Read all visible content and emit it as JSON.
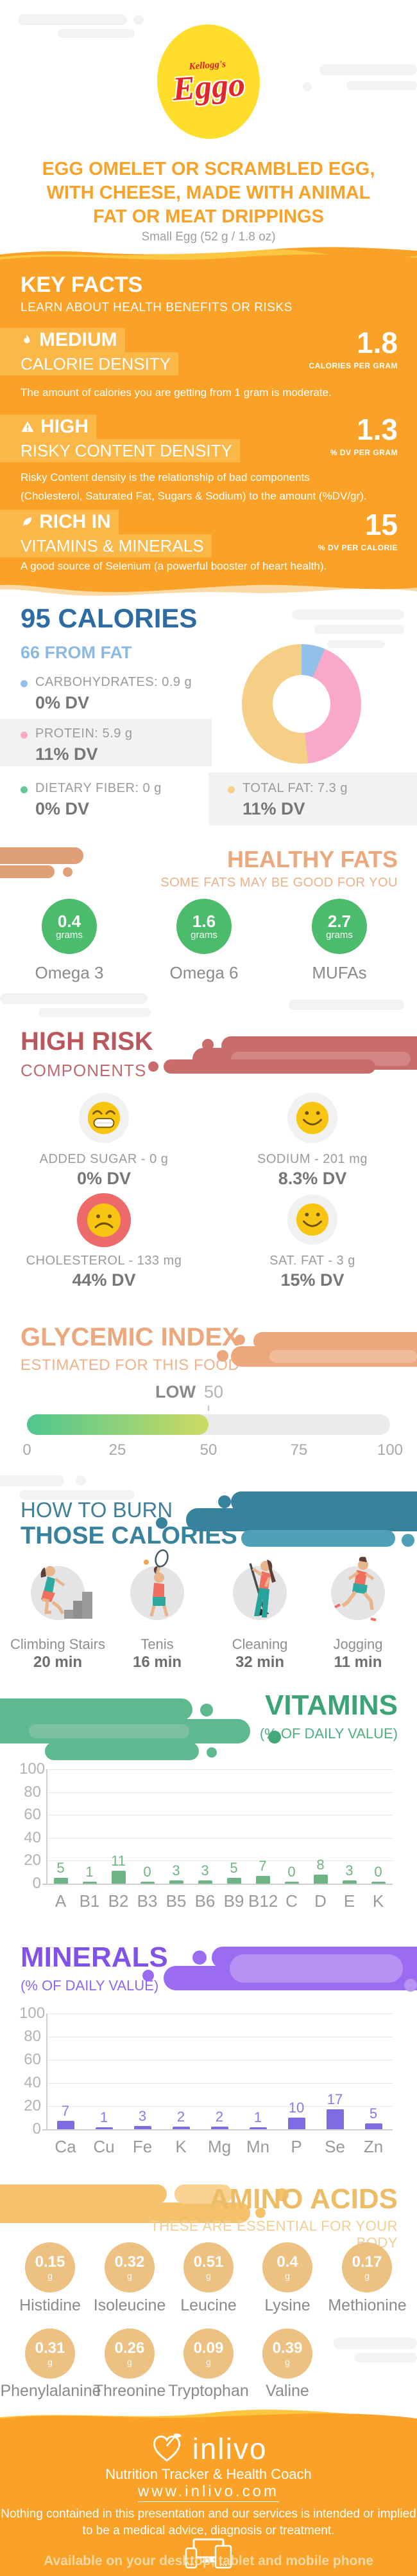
{
  "colors": {
    "orange": "#f9a227",
    "yellow_wave": "#fdc640",
    "peach_wave": "#fbd9a4",
    "highlight_box": "#fbb748",
    "blue_dark": "#2f6ba3",
    "blue_light": "#8cb9e2",
    "tan": "#eba87d",
    "green_blob": "#4cbb6c",
    "rose": "#b8585c",
    "teal": "#37839d",
    "vit_green": "#3ba375",
    "purple": "#8152e8",
    "gold": "#ecbc66"
  },
  "header": {
    "brand_small": "Kellogg's",
    "brand": "Eggo",
    "title_line1": "EGG OMELET OR SCRAMBLED EGG,",
    "title_line2": "WITH CHEESE, MADE WITH ANIMAL",
    "title_line3": "FAT OR MEAT DRIPPINGS",
    "subtitle": "Small Egg (52 g / 1.8 oz)"
  },
  "key_facts": {
    "title": "KEY FACTS",
    "subtitle": "LEARN ABOUT HEALTH BENEFITS OR RISKS",
    "facts": [
      {
        "level": "MEDIUM",
        "category": "CALORIE DENSITY",
        "value": "1.8",
        "unit": "CALORIES PER GRAM",
        "description": "The amount of calories you are getting from 1 gram is moderate."
      },
      {
        "level": "HIGH",
        "category": "RISKY CONTENT DENSITY",
        "value": "1.3",
        "unit": "% DV PER GRAM",
        "description_line1": "Risky Content density is the relationship of bad components",
        "description_line2": "(Cholesterol, Saturated Fat, Sugars & Sodium) to the amount (%DV/gr)."
      },
      {
        "level": "RICH IN",
        "category": "VITAMINS & MINERALS",
        "value": "15",
        "unit": "% DV PER CALORIE",
        "description": "A good source of Selenium (a powerful booster of heart health)."
      }
    ]
  },
  "calories": {
    "title": "95 CALORIES",
    "subtitle": "66 FROM FAT",
    "legend": [
      {
        "label": "CARBOHYDRATES: 0.9 g",
        "dv": "0% DV"
      },
      {
        "label": "PROTEIN: 5.9 g",
        "dv": "11% DV"
      },
      {
        "label": "DIETARY FIBER: 0 g",
        "dv": "0% DV"
      },
      {
        "label": "TOTAL FAT: 7.3 g",
        "dv": "11% DV"
      }
    ]
  },
  "healthy_fats": {
    "title": "HEALTHY FATS",
    "subtitle": "SOME FATS MAY BE GOOD FOR YOU",
    "items": [
      {
        "value": "0.4",
        "unit": "grams",
        "label": "Omega 3"
      },
      {
        "value": "1.6",
        "unit": "grams",
        "label": "Omega 6"
      },
      {
        "value": "2.7",
        "unit": "grams",
        "label": "MUFAs"
      }
    ]
  },
  "high_risk": {
    "title": "HIGH RISK",
    "subtitle": "COMPONENTS",
    "items": [
      {
        "label": "ADDED SUGAR - 0 g",
        "dv": "0% DV",
        "mood": "grin"
      },
      {
        "label": "SODIUM - 201 mg",
        "dv": "8.3% DV",
        "mood": "smile"
      },
      {
        "label": "CHOLESTEROL - 133 mg",
        "dv": "44% DV",
        "mood": "sad"
      },
      {
        "label": "SAT. FAT - 3 g",
        "dv": "15% DV",
        "mood": "smile"
      }
    ]
  },
  "glycemic": {
    "title": "GLYCEMIC INDEX",
    "subtitle": "ESTIMATED FOR THIS FOOD",
    "level": "LOW",
    "value": 50,
    "ticks": [
      "0",
      "25",
      "50",
      "75",
      "100"
    ]
  },
  "burn": {
    "title_line1": "HOW TO BURN",
    "title_line2": "THOSE CALORIES",
    "activities": [
      {
        "name": "Climbing Stairs",
        "time": "20 min"
      },
      {
        "name": "Tenis",
        "time": "16 min"
      },
      {
        "name": "Cleaning",
        "time": "32 min"
      },
      {
        "name": "Jogging",
        "time": "11 min"
      }
    ]
  },
  "chart_data": [
    {
      "type": "pie",
      "subtype": "donut",
      "slices": [
        {
          "label": "CARBOHYDRATES",
          "grams": 0.9,
          "color": "#92c0e9"
        },
        {
          "label": "PROTEIN",
          "grams": 5.9,
          "color": "#f9a8c9"
        },
        {
          "label": "DIETARY FIBER",
          "grams": 0,
          "color": "#63c796"
        },
        {
          "label": "TOTAL FAT",
          "grams": 7.3,
          "color": "#f6cf86"
        }
      ]
    },
    {
      "type": "bar",
      "title": "VITAMINS",
      "subtitle": "(% OF DAILY VALUE)",
      "categories": [
        "A",
        "B1",
        "B2",
        "B3",
        "B5",
        "B6",
        "B9",
        "B12",
        "C",
        "D",
        "E",
        "K"
      ],
      "values": [
        5,
        1,
        11,
        0,
        3,
        3,
        5,
        7,
        0,
        8,
        3,
        0
      ],
      "ylim": [
        0,
        100
      ],
      "yticks": [
        0,
        20,
        40,
        60,
        80,
        100
      ],
      "grid": true,
      "bar_color": "#6db584",
      "value_color": "#6db584"
    },
    {
      "type": "bar",
      "title": "MINERALS",
      "subtitle": "(% OF DAILY VALUE)",
      "categories": [
        "Ca",
        "Cu",
        "Fe",
        "K",
        "Mg",
        "Mn",
        "P",
        "Se",
        "Zn"
      ],
      "values": [
        7,
        1,
        3,
        2,
        2,
        1,
        10,
        17,
        5
      ],
      "ylim": [
        0,
        100
      ],
      "yticks": [
        0,
        20,
        40,
        60,
        80,
        100
      ],
      "grid": true,
      "bar_color": "#7d6ce2",
      "value_color": "#8a79e8"
    }
  ],
  "amino_acids": {
    "title": "AMINO ACIDS",
    "subtitle": "THESE ARE ESSENTIAL FOR YOUR BODY",
    "unit": "g",
    "items": [
      {
        "value": "0.15",
        "label": "Histidine"
      },
      {
        "value": "0.32",
        "label": "Isoleucine"
      },
      {
        "value": "0.51",
        "label": "Leucine"
      },
      {
        "value": "0.4",
        "label": "Lysine"
      },
      {
        "value": "0.17",
        "label": "Methionine"
      },
      {
        "value": "0.31",
        "label": "Phenylalanine"
      },
      {
        "value": "0.26",
        "label": "Threonine"
      },
      {
        "value": "0.09",
        "label": "Tryptophan"
      },
      {
        "value": "0.39",
        "label": "Valine"
      }
    ]
  },
  "footer": {
    "brand": "inlivo",
    "tagline": "Nutrition Tracker & Health Coach",
    "url": "www.inlivo.com",
    "disclaimer_line1": "Nothing contained in this presentation and our services is intended or implied",
    "disclaimer_line2": "to be a medical advice, diagnosis or treatment.",
    "availability": "Available on your desktop, tablet and mobile phone"
  }
}
